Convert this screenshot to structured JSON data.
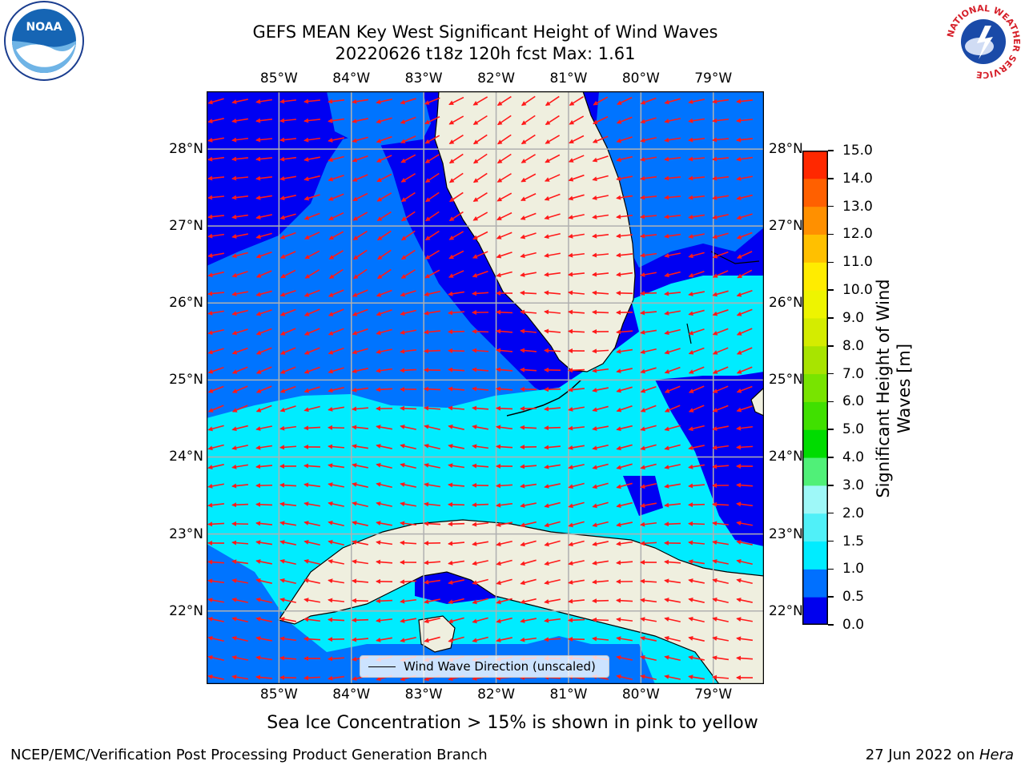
{
  "title_line1": "GEFS MEAN Key West Significant Height of Wind Waves",
  "title_line2": "20220626 t18z 120h fcst   Max: 1.61",
  "lon_labels": [
    "85°W",
    "84°W",
    "83°W",
    "82°W",
    "81°W",
    "80°W",
    "79°W"
  ],
  "lat_labels": [
    "28°N",
    "27°N",
    "26°N",
    "25°N",
    "24°N",
    "23°N",
    "22°N"
  ],
  "map": {
    "lon_range": [
      -86.0,
      -78.3
    ],
    "lat_range": [
      21.05,
      28.75
    ],
    "colors": {
      "ocean_deep": "#0000f2",
      "band_0_5": "#0074ff",
      "band_1_0": "#00ecff",
      "land": "#efefdf",
      "arrows": "#ff1a1a",
      "grid": "#b0b0b0",
      "coast": "#000000"
    }
  },
  "colorbar": {
    "ticks": [
      "0.0",
      "0.5",
      "1.0",
      "1.5",
      "2.0",
      "3.0",
      "4.0",
      "5.0",
      "6.0",
      "7.0",
      "8.0",
      "9.0",
      "10.0",
      "11.0",
      "12.0",
      "13.0",
      "14.0",
      "15.0"
    ],
    "colors": [
      "#0000ee",
      "#0070ff",
      "#00ecff",
      "#50f0f8",
      "#9ef8f8",
      "#50f078",
      "#00dc00",
      "#40e000",
      "#78e400",
      "#a8e400",
      "#d4ec00",
      "#eef400",
      "#ffec00",
      "#ffc000",
      "#ff9000",
      "#ff6000",
      "#ff2800"
    ],
    "label": "Significant Height of Wind Waves [m]"
  },
  "legend": {
    "label": "Wind Wave Direction (unscaled)"
  },
  "ice_note": "Sea Ice Concentration > 15% is shown in pink to yellow",
  "footer": {
    "left": "NCEP/EMC/Verification Post Processing Product Generation Branch",
    "right_date": "27 Jun 2022 on ",
    "right_host": "Hera"
  },
  "logos": {
    "noaa": "NOAA",
    "nws_ring": "NATIONAL WEATHER SERVICE"
  }
}
